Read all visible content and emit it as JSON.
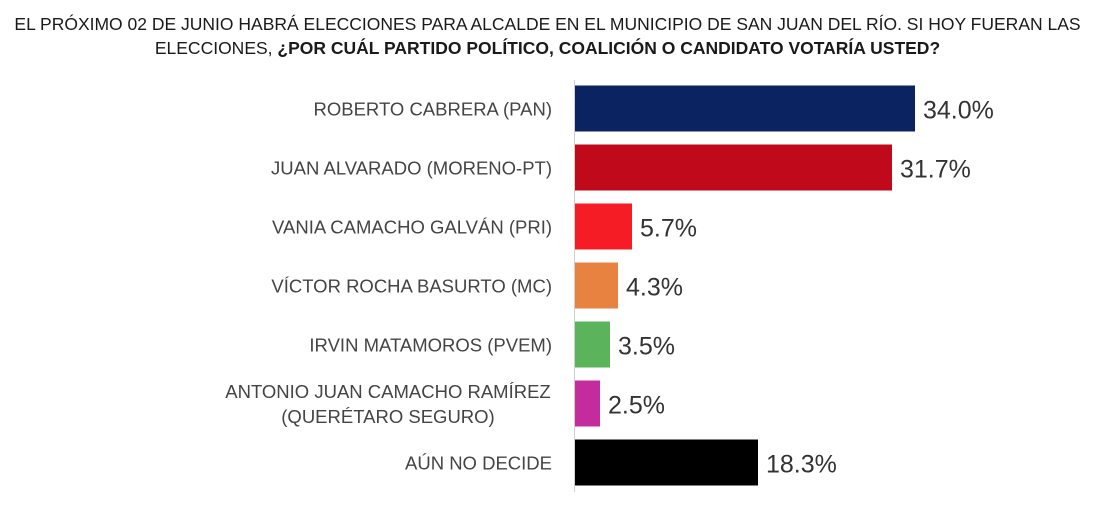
{
  "title": {
    "line1": "EL PRÓXIMO 02 DE JUNIO HABRÁ ELECCIONES PARA ALCALDE EN EL MUNICIPIO DE SAN JUAN DEL RÍO. SI HOY FUERAN LAS",
    "line2_plain": "ELECCIONES, ",
    "line2_bold": "¿POR CUÁL PARTIDO POLÍTICO, COALICIÓN O CANDIDATO VOTARÍA USTED?"
  },
  "chart_data": {
    "type": "bar",
    "orientation": "horizontal",
    "categories": [
      [
        "ROBERTO CABRERA (PAN)"
      ],
      [
        "JUAN ALVARADO (MORENO-PT)"
      ],
      [
        "VANIA CAMACHO GALVÁN (PRI)"
      ],
      [
        "VÍCTOR ROCHA BASURTO (MC)"
      ],
      [
        "IRVIN MATAMOROS (PVEM)"
      ],
      [
        "ANTONIO JUAN CAMACHO RAMÍREZ",
        "(QUERÉTARO SEGURO)"
      ],
      [
        "AÚN NO DECIDE"
      ]
    ],
    "values": [
      34.0,
      31.7,
      5.7,
      4.3,
      3.5,
      2.5,
      18.3
    ],
    "value_labels": [
      "34.0%",
      "31.7%",
      "5.7%",
      "4.3%",
      "3.5%",
      "2.5%",
      "18.3%"
    ],
    "colors": [
      "#0b2360",
      "#c0091a",
      "#f51c25",
      "#e88240",
      "#5bb35b",
      "#c42c9e",
      "#000000"
    ],
    "grid": false,
    "legend": "none"
  }
}
